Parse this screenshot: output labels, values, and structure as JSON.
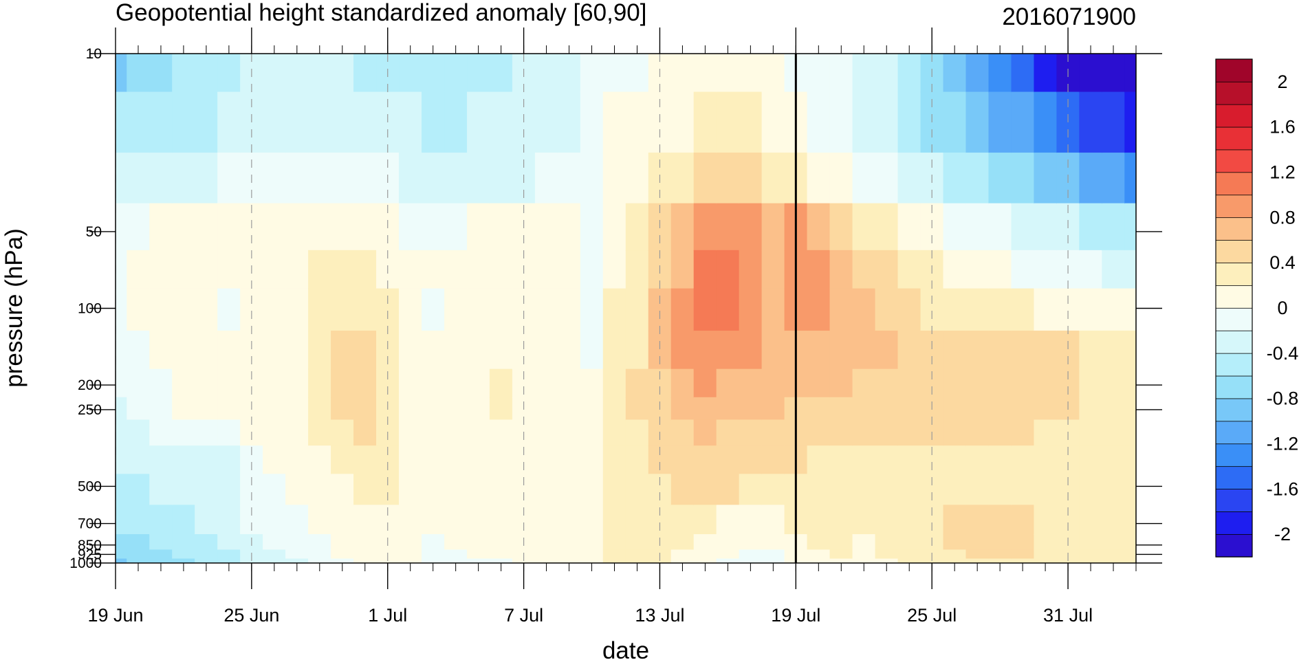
{
  "chart_data": {
    "type": "heatmap",
    "title": "Geopotential height standardized anomaly [60,90]",
    "right_title": "2016071900",
    "xlabel": "date",
    "ylabel": "pressure (hPa)",
    "y_scale": "log",
    "y_reversed": true,
    "ylim": [
      1000,
      10
    ],
    "xlim": [
      "2016-06-19",
      "2016-08-03"
    ],
    "x_tick_labels": [
      "19 Jun",
      "25 Jun",
      "1 Jul",
      "7 Jul",
      "13 Jul",
      "19 Jul",
      "25 Jul",
      "31 Jul"
    ],
    "x_tick_dates": [
      "2016-06-19",
      "2016-06-25",
      "2016-07-01",
      "2016-07-07",
      "2016-07-13",
      "2016-07-19",
      "2016-07-25",
      "2016-07-31"
    ],
    "y_ticks": [
      10,
      50,
      100,
      200,
      250,
      500,
      700,
      850,
      925,
      1000
    ],
    "y_tick_labels": [
      "10",
      "50",
      "100",
      "200",
      "250",
      "500",
      "700",
      "850",
      "925",
      "1000"
    ],
    "reference_line_date": "2016-07-19",
    "dashed_gridlines": "vertical at labeled dates",
    "colorbar": {
      "levels": [
        -2.2,
        -2.0,
        -1.8,
        -1.6,
        -1.4,
        -1.2,
        -1.0,
        -0.8,
        -0.6,
        -0.4,
        -0.2,
        0.0,
        0.2,
        0.4,
        0.6,
        0.8,
        1.0,
        1.2,
        1.4,
        1.6,
        1.8,
        2.0,
        2.2
      ],
      "tick_labels": [
        "-2",
        "-1.6",
        "-1.2",
        "-0.8",
        "-0.4",
        "0",
        "0.4",
        "0.8",
        "1.2",
        "1.6",
        "2"
      ],
      "tick_values": [
        -2.0,
        -1.6,
        -1.2,
        -0.8,
        -0.4,
        0.0,
        0.4,
        0.8,
        1.2,
        1.6,
        2.0
      ],
      "colors": [
        "#2b0fd0",
        "#1e1ef0",
        "#2a45f2",
        "#2d6cf5",
        "#3a8ff7",
        "#5aaaf8",
        "#78c8f8",
        "#96e0f8",
        "#b5eefa",
        "#d6f7fa",
        "#eefcfb",
        "#fffbe4",
        "#fdefbd",
        "#fcd9a0",
        "#fbc08a",
        "#f89a6a",
        "#f57a55",
        "#f24a43",
        "#e83036",
        "#d81c2d",
        "#b7102a",
        "#a0052a"
      ]
    },
    "days": [
      "2016-06-19",
      "2016-06-20",
      "2016-06-21",
      "2016-06-22",
      "2016-06-23",
      "2016-06-24",
      "2016-06-25",
      "2016-06-26",
      "2016-06-27",
      "2016-06-28",
      "2016-06-29",
      "2016-06-30",
      "2016-07-01",
      "2016-07-02",
      "2016-07-03",
      "2016-07-04",
      "2016-07-05",
      "2016-07-06",
      "2016-07-07",
      "2016-07-08",
      "2016-07-09",
      "2016-07-10",
      "2016-07-11",
      "2016-07-12",
      "2016-07-13",
      "2016-07-14",
      "2016-07-15",
      "2016-07-16",
      "2016-07-17",
      "2016-07-18",
      "2016-07-19",
      "2016-07-20",
      "2016-07-21",
      "2016-07-22",
      "2016-07-23",
      "2016-07-24",
      "2016-07-25",
      "2016-07-26",
      "2016-07-27",
      "2016-07-28",
      "2016-07-29",
      "2016-07-30",
      "2016-07-31",
      "2016-08-01",
      "2016-08-02",
      "2016-08-03"
    ],
    "pressure_levels": [
      10,
      20,
      30,
      50,
      70,
      100,
      150,
      200,
      250,
      300,
      400,
      500,
      700,
      850,
      925,
      1000
    ],
    "values": [
      [
        -0.85,
        -0.55,
        -0.35,
        -0.05,
        -0.05,
        -0.1,
        -0.15,
        -0.2,
        -0.25,
        -0.3,
        -0.35,
        -0.5,
        -0.6,
        -0.75,
        -0.8,
        -0.85
      ],
      [
        -0.75,
        -0.5,
        -0.3,
        -0.05,
        0.05,
        0.0,
        -0.05,
        -0.1,
        -0.15,
        -0.25,
        -0.3,
        -0.45,
        -0.55,
        -0.65,
        -0.7,
        -0.75
      ],
      [
        -0.65,
        -0.48,
        -0.28,
        0.05,
        0.08,
        0.05,
        0.0,
        -0.02,
        -0.05,
        -0.2,
        -0.28,
        -0.4,
        -0.5,
        -0.6,
        -0.65,
        -0.7
      ],
      [
        -0.55,
        -0.45,
        -0.25,
        0.05,
        0.08,
        0.06,
        0.04,
        0.02,
        0.0,
        -0.18,
        -0.26,
        -0.38,
        -0.45,
        -0.52,
        -0.58,
        -0.62
      ],
      [
        -0.5,
        -0.42,
        -0.22,
        0.06,
        0.08,
        0.07,
        0.05,
        0.04,
        0.02,
        -0.15,
        -0.24,
        -0.35,
        -0.4,
        -0.45,
        -0.5,
        -0.55
      ],
      [
        -0.45,
        -0.4,
        -0.2,
        0.07,
        0.05,
        -0.05,
        0.05,
        0.05,
        0.04,
        -0.1,
        -0.22,
        -0.3,
        -0.35,
        -0.4,
        -0.45,
        -0.5
      ],
      [
        -0.4,
        -0.38,
        -0.18,
        0.08,
        0.08,
        0.06,
        0.06,
        0.06,
        0.05,
        0.02,
        -0.05,
        -0.15,
        -0.2,
        -0.3,
        -0.35,
        -0.4
      ],
      [
        -0.4,
        -0.35,
        -0.15,
        0.1,
        0.1,
        0.08,
        0.08,
        0.08,
        0.06,
        0.04,
        0.0,
        -0.05,
        -0.1,
        -0.2,
        -0.25,
        -0.3
      ],
      [
        -0.4,
        -0.32,
        -0.12,
        0.12,
        0.15,
        0.15,
        0.14,
        0.14,
        0.12,
        0.1,
        0.05,
        0.02,
        -0.05,
        -0.12,
        -0.18,
        -0.22
      ],
      [
        -0.4,
        -0.3,
        -0.1,
        0.15,
        0.3,
        0.35,
        0.35,
        0.35,
        0.3,
        0.25,
        0.15,
        0.08,
        0.02,
        -0.05,
        -0.1,
        -0.15
      ],
      [
        -0.4,
        -0.28,
        -0.1,
        0.12,
        0.32,
        0.38,
        0.4,
        0.42,
        0.4,
        0.38,
        0.3,
        0.15,
        0.05,
        0.02,
        0.0,
        -0.05
      ],
      [
        -0.42,
        -0.3,
        -0.12,
        0.1,
        0.32,
        0.38,
        0.4,
        0.42,
        0.42,
        0.4,
        0.35,
        0.25,
        0.1,
        0.04,
        0.02,
        0.0
      ],
      [
        -0.45,
        -0.32,
        -0.15,
        0.08,
        0.15,
        0.2,
        0.28,
        0.32,
        0.3,
        0.28,
        0.3,
        0.28,
        0.12,
        0.06,
        0.04,
        0.02
      ],
      [
        -0.5,
        -0.38,
        -0.25,
        -0.05,
        0.05,
        0.02,
        0.05,
        0.1,
        0.1,
        0.08,
        0.08,
        0.08,
        0.06,
        0.04,
        0.02,
        0.0
      ],
      [
        -0.55,
        -0.45,
        -0.3,
        -0.08,
        0.03,
        -0.02,
        0.02,
        0.05,
        0.06,
        0.06,
        0.05,
        0.05,
        0.04,
        -0.02,
        -0.05,
        -0.06
      ],
      [
        -0.55,
        -0.45,
        -0.3,
        -0.05,
        0.05,
        0.05,
        0.05,
        0.06,
        0.08,
        0.06,
        0.05,
        0.05,
        0.04,
        0.0,
        -0.02,
        -0.04
      ],
      [
        -0.5,
        -0.4,
        -0.28,
        0.08,
        0.08,
        0.06,
        0.08,
        0.1,
        0.12,
        0.1,
        0.06,
        0.05,
        0.04,
        0.02,
        0.0,
        -0.02
      ],
      [
        -0.48,
        -0.38,
        -0.25,
        0.1,
        0.1,
        0.08,
        0.12,
        0.2,
        0.28,
        0.15,
        0.08,
        0.06,
        0.05,
        0.02,
        0.0,
        -0.02
      ],
      [
        -0.4,
        -0.35,
        -0.22,
        0.1,
        0.1,
        0.08,
        0.1,
        0.12,
        0.12,
        0.1,
        0.08,
        0.06,
        0.05,
        0.03,
        0.02,
        0.0
      ],
      [
        -0.3,
        -0.3,
        -0.2,
        0.06,
        0.08,
        0.08,
        0.08,
        0.08,
        0.08,
        0.08,
        0.08,
        0.08,
        0.1,
        0.05,
        0.04,
        0.02
      ],
      [
        -0.25,
        -0.28,
        -0.15,
        0.04,
        0.06,
        0.06,
        0.06,
        0.06,
        0.06,
        0.08,
        0.1,
        0.12,
        0.12,
        0.1,
        0.08,
        0.06
      ],
      [
        -0.2,
        -0.2,
        -0.1,
        -0.05,
        -0.1,
        -0.12,
        -0.05,
        0.05,
        0.08,
        0.1,
        0.12,
        0.15,
        0.16,
        0.16,
        0.15,
        0.12
      ],
      [
        -0.1,
        0.02,
        0.05,
        0.08,
        0.15,
        0.2,
        0.22,
        0.22,
        0.22,
        0.22,
        0.22,
        0.22,
        0.22,
        0.2,
        0.2,
        0.2
      ],
      [
        -0.05,
        0.05,
        0.12,
        0.25,
        0.32,
        0.36,
        0.38,
        0.4,
        0.4,
        0.38,
        0.36,
        0.34,
        0.3,
        0.28,
        0.26,
        0.25
      ],
      [
        0.0,
        0.12,
        0.25,
        0.45,
        0.55,
        0.6,
        0.62,
        0.58,
        0.52,
        0.48,
        0.44,
        0.38,
        0.32,
        0.28,
        0.26,
        0.25
      ],
      [
        0.02,
        0.18,
        0.32,
        0.62,
        0.78,
        0.84,
        0.82,
        0.72,
        0.62,
        0.56,
        0.48,
        0.42,
        0.3,
        0.22,
        0.18,
        0.15
      ],
      [
        0.05,
        0.22,
        0.4,
        0.8,
        1.05,
        1.02,
        0.92,
        0.8,
        0.68,
        0.6,
        0.52,
        0.42,
        0.24,
        0.1,
        0.05,
        0.02
      ],
      [
        0.08,
        0.25,
        0.45,
        0.84,
        1.12,
        1.0,
        0.9,
        0.78,
        0.66,
        0.58,
        0.5,
        0.4,
        0.15,
        0.04,
        0.0,
        -0.02
      ],
      [
        0.06,
        0.22,
        0.42,
        0.8,
        0.9,
        0.86,
        0.84,
        0.74,
        0.65,
        0.58,
        0.48,
        0.36,
        0.12,
        0.02,
        -0.05,
        -0.06
      ],
      [
        0.02,
        0.15,
        0.36,
        0.75,
        0.7,
        0.62,
        0.7,
        0.68,
        0.62,
        0.55,
        0.45,
        0.35,
        0.1,
        0.0,
        -0.05,
        -0.05
      ],
      [
        -0.05,
        0.02,
        0.25,
        0.82,
        0.86,
        0.8,
        0.72,
        0.64,
        0.58,
        0.52,
        0.4,
        0.36,
        0.25,
        0.15,
        0.05,
        0.0
      ],
      [
        -0.12,
        -0.1,
        0.15,
        0.68,
        0.84,
        0.82,
        0.7,
        0.62,
        0.56,
        0.45,
        0.38,
        0.35,
        0.3,
        0.2,
        0.18,
        0.16
      ],
      [
        -0.2,
        -0.2,
        0.05,
        0.55,
        0.7,
        0.75,
        0.66,
        0.6,
        0.52,
        0.42,
        0.36,
        0.34,
        0.3,
        0.22,
        0.2,
        0.18
      ],
      [
        -0.3,
        -0.3,
        -0.05,
        0.38,
        0.58,
        0.66,
        0.62,
        0.58,
        0.48,
        0.4,
        0.36,
        0.34,
        0.22,
        0.1,
        0.05,
        0.02
      ],
      [
        -0.4,
        -0.4,
        -0.15,
        0.22,
        0.42,
        0.55,
        0.6,
        0.56,
        0.46,
        0.4,
        0.36,
        0.34,
        0.3,
        0.25,
        0.2,
        0.18
      ],
      [
        -0.55,
        -0.5,
        -0.25,
        0.1,
        0.3,
        0.45,
        0.58,
        0.56,
        0.46,
        0.4,
        0.36,
        0.34,
        0.32,
        0.3,
        0.28,
        0.26
      ],
      [
        -0.7,
        -0.62,
        -0.35,
        0.02,
        0.2,
        0.38,
        0.56,
        0.56,
        0.46,
        0.4,
        0.36,
        0.34,
        0.36,
        0.34,
        0.32,
        0.3
      ],
      [
        -0.9,
        -0.75,
        -0.45,
        -0.05,
        0.12,
        0.34,
        0.54,
        0.58,
        0.48,
        0.4,
        0.36,
        0.35,
        0.4,
        0.42,
        0.38,
        0.32
      ],
      [
        -1.1,
        -0.9,
        -0.55,
        -0.12,
        0.05,
        0.3,
        0.52,
        0.58,
        0.48,
        0.4,
        0.36,
        0.35,
        0.42,
        0.46,
        0.42,
        0.34
      ],
      [
        -1.35,
        -1.05,
        -0.65,
        -0.18,
        0.0,
        0.26,
        0.5,
        0.56,
        0.46,
        0.4,
        0.36,
        0.35,
        0.42,
        0.46,
        0.42,
        0.34
      ],
      [
        -1.6,
        -1.2,
        -0.75,
        -0.24,
        -0.05,
        0.22,
        0.48,
        0.54,
        0.44,
        0.4,
        0.36,
        0.35,
        0.4,
        0.44,
        0.42,
        0.32
      ],
      [
        -1.85,
        -1.35,
        -0.85,
        -0.3,
        -0.1,
        0.18,
        0.46,
        0.48,
        0.42,
        0.38,
        0.36,
        0.35,
        0.36,
        0.38,
        0.36,
        0.3
      ],
      [
        -2.05,
        -1.5,
        -0.95,
        -0.36,
        -0.14,
        0.14,
        0.4,
        0.42,
        0.4,
        0.38,
        0.36,
        0.34,
        0.34,
        0.32,
        0.3,
        0.28
      ],
      [
        -2.25,
        -1.65,
        -1.05,
        -0.42,
        -0.18,
        0.1,
        0.3,
        0.36,
        0.38,
        0.36,
        0.34,
        0.34,
        0.32,
        0.3,
        0.28,
        0.25
      ],
      [
        -2.45,
        -1.8,
        -1.15,
        -0.48,
        -0.22,
        0.06,
        0.22,
        0.32,
        0.36,
        0.35,
        0.34,
        0.33,
        0.3,
        0.28,
        0.26,
        0.22
      ],
      [
        -2.6,
        -1.95,
        -1.25,
        -0.55,
        -0.26,
        0.04,
        0.2,
        0.3,
        0.34,
        0.34,
        0.33,
        0.32,
        0.28,
        0.26,
        0.24,
        0.2
      ]
    ]
  }
}
